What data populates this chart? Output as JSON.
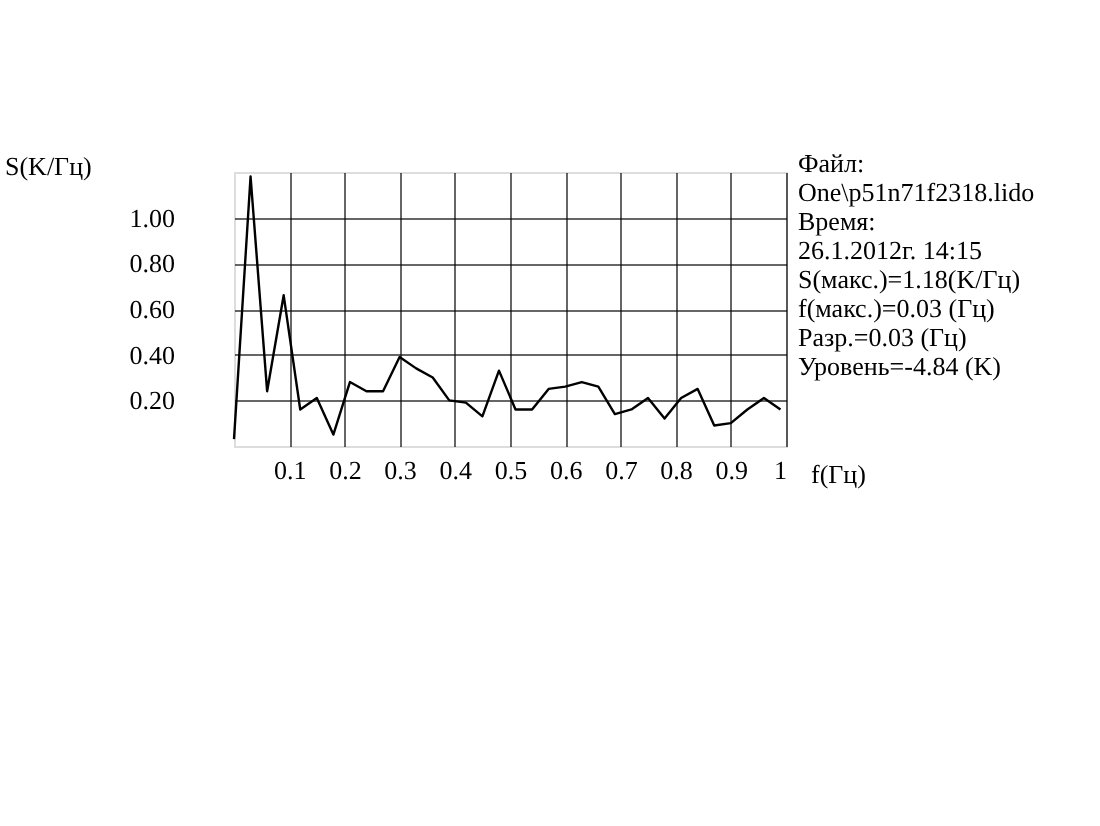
{
  "chart_data": {
    "type": "line",
    "ylabel": "S(K/Гц)",
    "xlabel": "f(Гц)",
    "x": [
      0,
      0.03,
      0.06,
      0.09,
      0.12,
      0.15,
      0.18,
      0.21,
      0.24,
      0.27,
      0.3,
      0.33,
      0.36,
      0.39,
      0.42,
      0.45,
      0.48,
      0.51,
      0.54,
      0.57,
      0.6,
      0.63,
      0.66,
      0.69,
      0.72,
      0.75,
      0.78,
      0.81,
      0.84,
      0.87,
      0.9,
      0.93,
      0.96,
      0.99
    ],
    "series": [
      {
        "color": "#000000",
        "values": [
          0.03,
          1.18,
          0.24,
          0.66,
          0.16,
          0.21,
          0.05,
          0.28,
          0.24,
          0.24,
          0.39,
          0.34,
          0.3,
          0.2,
          0.19,
          0.13,
          0.33,
          0.16,
          0.16,
          0.25,
          0.26,
          0.28,
          0.26,
          0.14,
          0.16,
          0.21,
          0.12,
          0.21,
          0.25,
          0.09,
          0.1,
          0.16,
          0.21,
          0.16
        ]
      }
    ],
    "xlim": [
      0,
      1
    ],
    "ylim": [
      0,
      1.2
    ],
    "xticks": [
      0.1,
      0.2,
      0.3,
      0.4,
      0.5,
      0.6,
      0.7,
      0.8,
      0.9,
      {
        "value": 1,
        "label": "1"
      }
    ],
    "yticks": [
      {
        "value": 0.2,
        "label": "0.20"
      },
      {
        "value": 0.4,
        "label": "0.40"
      },
      {
        "value": 0.6,
        "label": "0.60"
      },
      {
        "value": 0.8,
        "label": "0.80"
      },
      {
        "value": 1.0,
        "label": "1.00"
      }
    ],
    "grid": true,
    "marker": "none",
    "line_style": "solid",
    "annotations": [
      "Файл:",
      "  One\\p51n71f2318.lido",
      "Время:",
      "  26.1.2012г. 14:15",
      "S(макс.)=1.18(K/Гц)",
      "f(макс.)=0.03 (Гц)",
      "Разр.=0.03 (Гц)",
      "Уровень=-4.84 (K)"
    ]
  }
}
